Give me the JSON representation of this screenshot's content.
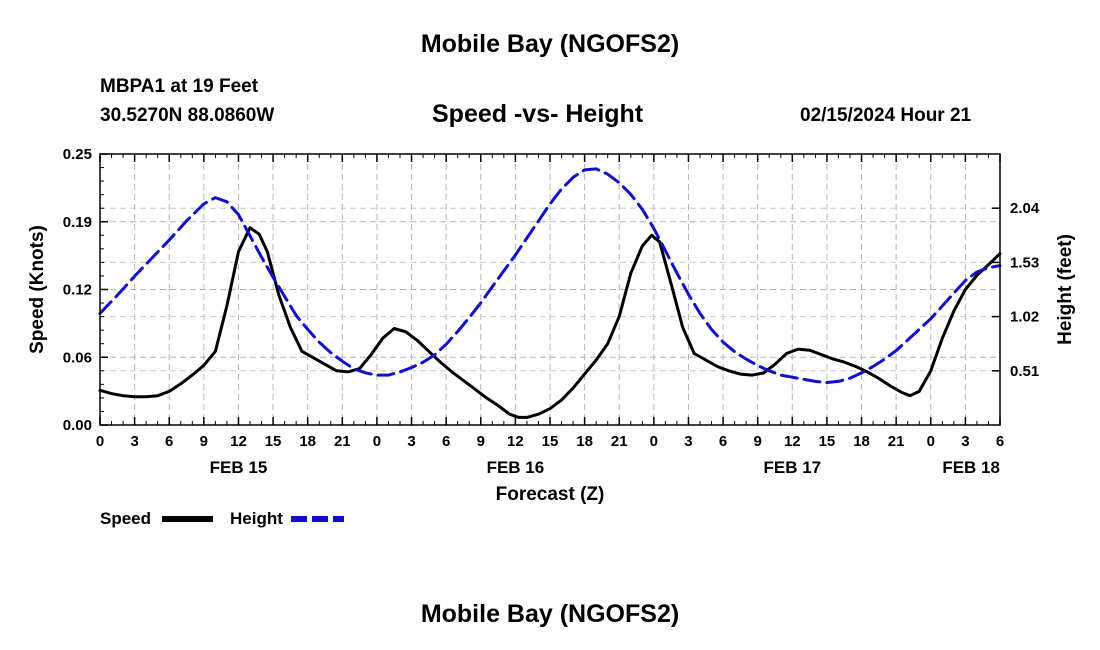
{
  "header": {
    "title": "Mobile Bay (NGOFS2)",
    "station": "MBPA1 at 19 Feet",
    "coords": "30.5270N  88.0860W",
    "subtitle": "Speed -vs- Height",
    "run_time": "02/15/2024 Hour 21"
  },
  "footer": {
    "title": "Mobile Bay (NGOFS2)"
  },
  "legend": {
    "speed_label": "Speed",
    "height_label": "Height"
  },
  "chart_data": {
    "type": "line",
    "xlabel": "Forecast (Z)",
    "ylabel_left": "Speed (Knots)",
    "ylabel_right": "Height (feet)",
    "x_range_hours": [
      0,
      78
    ],
    "x_ticks": [
      {
        "hour": 0,
        "label": "0"
      },
      {
        "hour": 3,
        "label": "3"
      },
      {
        "hour": 6,
        "label": "6"
      },
      {
        "hour": 9,
        "label": "9"
      },
      {
        "hour": 12,
        "label": "12"
      },
      {
        "hour": 15,
        "label": "15"
      },
      {
        "hour": 18,
        "label": "18"
      },
      {
        "hour": 21,
        "label": "21"
      },
      {
        "hour": 24,
        "label": "0"
      },
      {
        "hour": 27,
        "label": "3"
      },
      {
        "hour": 30,
        "label": "6"
      },
      {
        "hour": 33,
        "label": "9"
      },
      {
        "hour": 36,
        "label": "12"
      },
      {
        "hour": 39,
        "label": "15"
      },
      {
        "hour": 42,
        "label": "18"
      },
      {
        "hour": 45,
        "label": "21"
      },
      {
        "hour": 48,
        "label": "0"
      },
      {
        "hour": 51,
        "label": "3"
      },
      {
        "hour": 54,
        "label": "6"
      },
      {
        "hour": 57,
        "label": "9"
      },
      {
        "hour": 60,
        "label": "12"
      },
      {
        "hour": 63,
        "label": "15"
      },
      {
        "hour": 66,
        "label": "18"
      },
      {
        "hour": 69,
        "label": "21"
      },
      {
        "hour": 72,
        "label": "0"
      },
      {
        "hour": 75,
        "label": "3"
      },
      {
        "hour": 78,
        "label": "6"
      }
    ],
    "date_labels": [
      {
        "hour": 12,
        "label": "FEB 15"
      },
      {
        "hour": 36,
        "label": "FEB 16"
      },
      {
        "hour": 60,
        "label": "FEB 17"
      },
      {
        "hour": 75.5,
        "label": "FEB 18"
      }
    ],
    "y_left": {
      "range": [
        0,
        0.25
      ],
      "ticks": [
        "0.00",
        "0.06",
        "0.12",
        "0.19",
        "0.25"
      ],
      "tick_values": [
        0,
        0.0625,
        0.125,
        0.1875,
        0.25
      ]
    },
    "y_right": {
      "range": [
        0,
        2.55
      ],
      "ticks": [
        "0.51",
        "1.02",
        "1.53",
        "2.04"
      ],
      "tick_values": [
        0.51,
        1.02,
        1.53,
        2.04
      ]
    },
    "grid": true,
    "series": [
      {
        "name": "Speed",
        "axis": "left",
        "color": "#000000",
        "style": "solid",
        "points": [
          [
            0,
            0.032
          ],
          [
            1,
            0.029
          ],
          [
            2,
            0.027
          ],
          [
            3,
            0.026
          ],
          [
            4,
            0.026
          ],
          [
            5,
            0.027
          ],
          [
            6,
            0.031
          ],
          [
            7,
            0.038
          ],
          [
            8,
            0.046
          ],
          [
            9,
            0.055
          ],
          [
            10,
            0.068
          ],
          [
            11,
            0.11
          ],
          [
            12,
            0.16
          ],
          [
            13,
            0.182
          ],
          [
            13.8,
            0.176
          ],
          [
            14.5,
            0.16
          ],
          [
            15.5,
            0.12
          ],
          [
            16.5,
            0.09
          ],
          [
            17.5,
            0.068
          ],
          [
            18.5,
            0.062
          ],
          [
            19.5,
            0.056
          ],
          [
            20.5,
            0.05
          ],
          [
            21.5,
            0.049
          ],
          [
            22.5,
            0.052
          ],
          [
            23.5,
            0.065
          ],
          [
            24.5,
            0.08
          ],
          [
            25.5,
            0.089
          ],
          [
            26.5,
            0.086
          ],
          [
            27.5,
            0.078
          ],
          [
            28.5,
            0.068
          ],
          [
            29.5,
            0.058
          ],
          [
            30.5,
            0.049
          ],
          [
            31.5,
            0.041
          ],
          [
            32.5,
            0.033
          ],
          [
            33.5,
            0.025
          ],
          [
            34.5,
            0.018
          ],
          [
            35.5,
            0.01
          ],
          [
            36.3,
            0.007
          ],
          [
            37,
            0.007
          ],
          [
            38,
            0.01
          ],
          [
            39,
            0.015
          ],
          [
            40,
            0.023
          ],
          [
            41,
            0.034
          ],
          [
            42,
            0.047
          ],
          [
            43,
            0.06
          ],
          [
            44,
            0.075
          ],
          [
            45,
            0.1
          ],
          [
            46,
            0.14
          ],
          [
            47,
            0.165
          ],
          [
            47.8,
            0.175
          ],
          [
            48.5,
            0.169
          ],
          [
            49.5,
            0.13
          ],
          [
            50.5,
            0.09
          ],
          [
            51.5,
            0.066
          ],
          [
            52.5,
            0.06
          ],
          [
            53.5,
            0.054
          ],
          [
            54.5,
            0.05
          ],
          [
            55.5,
            0.047
          ],
          [
            56.5,
            0.046
          ],
          [
            57.5,
            0.048
          ],
          [
            58.5,
            0.056
          ],
          [
            59.5,
            0.066
          ],
          [
            60.5,
            0.07
          ],
          [
            61.5,
            0.069
          ],
          [
            62.5,
            0.065
          ],
          [
            63.5,
            0.061
          ],
          [
            64.5,
            0.058
          ],
          [
            65.5,
            0.054
          ],
          [
            66.5,
            0.049
          ],
          [
            67.5,
            0.043
          ],
          [
            68.5,
            0.036
          ],
          [
            69.5,
            0.03
          ],
          [
            70.2,
            0.027
          ],
          [
            71,
            0.031
          ],
          [
            72,
            0.05
          ],
          [
            73,
            0.08
          ],
          [
            74,
            0.105
          ],
          [
            75,
            0.125
          ],
          [
            76,
            0.138
          ],
          [
            77,
            0.148
          ],
          [
            78,
            0.158
          ]
        ]
      },
      {
        "name": "Height",
        "axis": "right",
        "color": "#1010c8",
        "style": "dashed",
        "points": [
          [
            0,
            1.05
          ],
          [
            1.5,
            1.22
          ],
          [
            3,
            1.4
          ],
          [
            4.5,
            1.57
          ],
          [
            6,
            1.74
          ],
          [
            7.5,
            1.92
          ],
          [
            9,
            2.08
          ],
          [
            10,
            2.14
          ],
          [
            11,
            2.1
          ],
          [
            12,
            1.98
          ],
          [
            13,
            1.78
          ],
          [
            14,
            1.58
          ],
          [
            15,
            1.39
          ],
          [
            16,
            1.21
          ],
          [
            17,
            1.03
          ],
          [
            18,
            0.9
          ],
          [
            19,
            0.78
          ],
          [
            20,
            0.68
          ],
          [
            21,
            0.6
          ],
          [
            22,
            0.53
          ],
          [
            23,
            0.49
          ],
          [
            24,
            0.47
          ],
          [
            25,
            0.47
          ],
          [
            26,
            0.5
          ],
          [
            27,
            0.54
          ],
          [
            28,
            0.59
          ],
          [
            29,
            0.66
          ],
          [
            30,
            0.76
          ],
          [
            31,
            0.88
          ],
          [
            32,
            1.01
          ],
          [
            33,
            1.15
          ],
          [
            34,
            1.3
          ],
          [
            35,
            1.45
          ],
          [
            36,
            1.6
          ],
          [
            37,
            1.76
          ],
          [
            38,
            1.92
          ],
          [
            39,
            2.08
          ],
          [
            40,
            2.22
          ],
          [
            41,
            2.33
          ],
          [
            42,
            2.4
          ],
          [
            43,
            2.41
          ],
          [
            44,
            2.36
          ],
          [
            45,
            2.28
          ],
          [
            46,
            2.17
          ],
          [
            47,
            2.03
          ],
          [
            48,
            1.85
          ],
          [
            49,
            1.64
          ],
          [
            50,
            1.43
          ],
          [
            51,
            1.23
          ],
          [
            52,
            1.05
          ],
          [
            53,
            0.9
          ],
          [
            54,
            0.78
          ],
          [
            55,
            0.69
          ],
          [
            56,
            0.62
          ],
          [
            57,
            0.56
          ],
          [
            58,
            0.51
          ],
          [
            59,
            0.47
          ],
          [
            60,
            0.45
          ],
          [
            61,
            0.43
          ],
          [
            62,
            0.41
          ],
          [
            63,
            0.4
          ],
          [
            64,
            0.41
          ],
          [
            65,
            0.44
          ],
          [
            66,
            0.49
          ],
          [
            67,
            0.55
          ],
          [
            68,
            0.62
          ],
          [
            69,
            0.7
          ],
          [
            70,
            0.8
          ],
          [
            71,
            0.9
          ],
          [
            72,
            1.0
          ],
          [
            73,
            1.12
          ],
          [
            74,
            1.24
          ],
          [
            75,
            1.36
          ],
          [
            76,
            1.44
          ],
          [
            77,
            1.48
          ],
          [
            78,
            1.5
          ]
        ]
      }
    ]
  }
}
